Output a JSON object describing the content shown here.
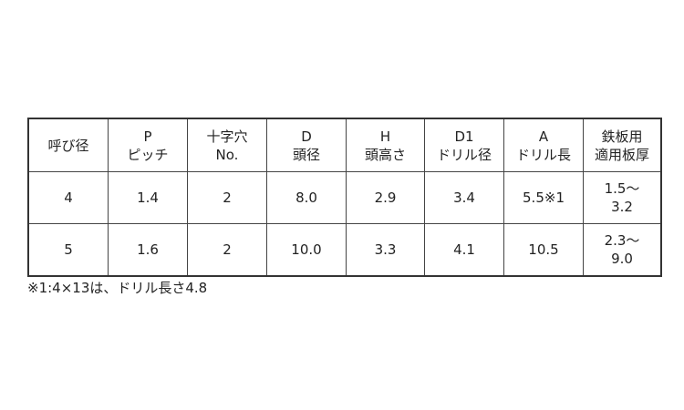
{
  "table": {
    "headers": [
      [
        "呼び径"
      ],
      [
        "P",
        "ピッチ"
      ],
      [
        "十字穴",
        "No."
      ],
      [
        "D",
        "頭径"
      ],
      [
        "H",
        "頭高さ"
      ],
      [
        "D1",
        "ドリル径"
      ],
      [
        "A",
        "ドリル長"
      ],
      [
        "鉄板用",
        "適用板厚"
      ]
    ],
    "rows": [
      [
        [
          "4"
        ],
        [
          "1.4"
        ],
        [
          "2"
        ],
        [
          "8.0"
        ],
        [
          "2.9"
        ],
        [
          "3.4"
        ],
        [
          "5.5※1"
        ],
        [
          "1.5～",
          "3.2"
        ]
      ],
      [
        [
          "5"
        ],
        [
          "1.6"
        ],
        [
          "2"
        ],
        [
          "10.0"
        ],
        [
          "3.3"
        ],
        [
          "4.1"
        ],
        [
          "10.5"
        ],
        [
          "2.3～",
          "9.0"
        ]
      ]
    ]
  },
  "footnote": "※1:4×13は、ドリル長さ4.8"
}
